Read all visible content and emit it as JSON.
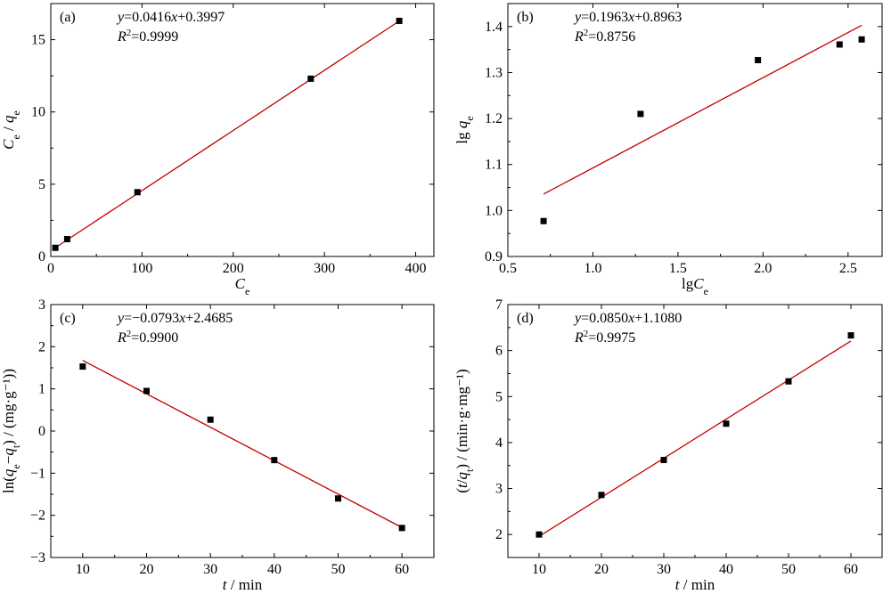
{
  "chart_data": [
    {
      "type": "scatter",
      "panel_label": "(a)",
      "equation_y": "y",
      "equation_rest": "=0.0416",
      "equation_x": "x",
      "equation_tail": "+0.3997",
      "r2_label": "R",
      "r2_value": "=0.9999",
      "xlabel_main": "C",
      "xlabel_sub": "e",
      "xlabel_unit": "",
      "ylabel_parts": {
        "a": "C",
        "a_sub": "e",
        "sep": " / ",
        "b": "q",
        "b_sub": "e",
        "unit": ""
      },
      "xlim": [
        0,
        420
      ],
      "ylim": [
        0,
        17.5
      ],
      "xticks": [
        0,
        100,
        200,
        300,
        400
      ],
      "xtick_labels": [
        "0",
        "100",
        "200",
        "300",
        "400"
      ],
      "yticks": [
        0,
        5,
        10,
        15
      ],
      "ytick_labels": [
        "0",
        "5",
        "10",
        "15"
      ],
      "points": [
        {
          "x": 5,
          "y": 0.6
        },
        {
          "x": 18,
          "y": 1.2
        },
        {
          "x": 95,
          "y": 4.45
        },
        {
          "x": 285,
          "y": 12.3
        },
        {
          "x": 382,
          "y": 16.3
        }
      ],
      "fit": {
        "slope": 0.0416,
        "intercept": 0.3997,
        "x_range": [
          5,
          382
        ]
      },
      "line_color": "#c00000"
    },
    {
      "type": "scatter",
      "panel_label": "(b)",
      "equation_y": "y",
      "equation_rest": "=0.1963",
      "equation_x": "x",
      "equation_tail": "+0.8963",
      "r2_label": "R",
      "r2_value": "=0.8756",
      "xlabel_main": "lgC",
      "xlabel_sub": "e",
      "xlabel_unit": "",
      "ylabel_parts": {
        "a": "lg q",
        "a_sub": "e",
        "sep": "",
        "b": "",
        "b_sub": "",
        "unit": ""
      },
      "xlim": [
        0.5,
        2.7
      ],
      "ylim": [
        0.9,
        1.45
      ],
      "xticks": [
        0.5,
        1.0,
        1.5,
        2.0,
        2.5
      ],
      "xtick_labels": [
        "0.5",
        "1.0",
        "1.5",
        "2.0",
        "2.5"
      ],
      "yticks": [
        0.9,
        1.0,
        1.1,
        1.2,
        1.3,
        1.4
      ],
      "ytick_labels": [
        "0.9",
        "1.0",
        "1.1",
        "1.2",
        "1.3",
        "1.4"
      ],
      "points": [
        {
          "x": 0.71,
          "y": 0.977
        },
        {
          "x": 1.28,
          "y": 1.21
        },
        {
          "x": 1.97,
          "y": 1.327
        },
        {
          "x": 2.45,
          "y": 1.361
        },
        {
          "x": 2.58,
          "y": 1.372
        }
      ],
      "fit": {
        "slope": 0.1963,
        "intercept": 0.8963,
        "x_range": [
          0.71,
          2.58
        ]
      },
      "line_color": "#c00000"
    },
    {
      "type": "scatter",
      "panel_label": "(c)",
      "equation_y": "y",
      "equation_rest": "=−0.0793",
      "equation_x": "x",
      "equation_tail": "+2.4685",
      "r2_label": "R",
      "r2_value": "=0.9900",
      "xlabel_main": "t",
      "xlabel_sub": "",
      "xlabel_unit": " / min",
      "ylabel_parts": {
        "a": "ln(q",
        "a_sub": "e",
        "sep": "−q",
        "b": "",
        "b_sub": "t",
        "unit": ") / (mg·g⁻¹))"
      },
      "xlim": [
        5,
        65
      ],
      "ylim": [
        -3,
        3
      ],
      "xticks": [
        10,
        20,
        30,
        40,
        50,
        60
      ],
      "xtick_labels": [
        "10",
        "20",
        "30",
        "40",
        "50",
        "60"
      ],
      "yticks": [
        -3,
        -2,
        -1,
        0,
        1,
        2,
        3
      ],
      "ytick_labels": [
        "−3",
        "−2",
        "−1",
        "0",
        "1",
        "2",
        "3"
      ],
      "points": [
        {
          "x": 10,
          "y": 1.53
        },
        {
          "x": 20,
          "y": 0.95
        },
        {
          "x": 30,
          "y": 0.27
        },
        {
          "x": 40,
          "y": -0.69
        },
        {
          "x": 50,
          "y": -1.6
        },
        {
          "x": 60,
          "y": -2.3
        }
      ],
      "fit": {
        "slope": -0.0793,
        "intercept": 2.4685,
        "x_range": [
          10,
          60
        ]
      },
      "line_color": "#c00000"
    },
    {
      "type": "scatter",
      "panel_label": "(d)",
      "equation_y": "y",
      "equation_rest": "=0.0850",
      "equation_x": "x",
      "equation_tail": "+1.1080",
      "r2_label": "R",
      "r2_value": "=0.9975",
      "xlabel_main": "t",
      "xlabel_sub": "",
      "xlabel_unit": " / min",
      "ylabel_parts": {
        "a": "(t/q",
        "a_sub": "t",
        "sep": "",
        "b": "",
        "b_sub": "",
        "unit": ") / (min·g·mg⁻¹)"
      },
      "xlim": [
        5,
        65
      ],
      "ylim": [
        1.5,
        7
      ],
      "xticks": [
        10,
        20,
        30,
        40,
        50,
        60
      ],
      "xtick_labels": [
        "10",
        "20",
        "30",
        "40",
        "50",
        "60"
      ],
      "yticks": [
        2,
        3,
        4,
        5,
        6,
        7
      ],
      "ytick_labels": [
        "2",
        "3",
        "4",
        "5",
        "6",
        "7"
      ],
      "points": [
        {
          "x": 10,
          "y": 2.0
        },
        {
          "x": 20,
          "y": 2.86
        },
        {
          "x": 30,
          "y": 3.62
        },
        {
          "x": 40,
          "y": 4.41
        },
        {
          "x": 50,
          "y": 5.33
        },
        {
          "x": 60,
          "y": 6.33
        }
      ],
      "fit": {
        "slope": 0.085,
        "intercept": 1.108,
        "x_range": [
          10,
          60
        ]
      },
      "line_color": "#c00000"
    }
  ]
}
